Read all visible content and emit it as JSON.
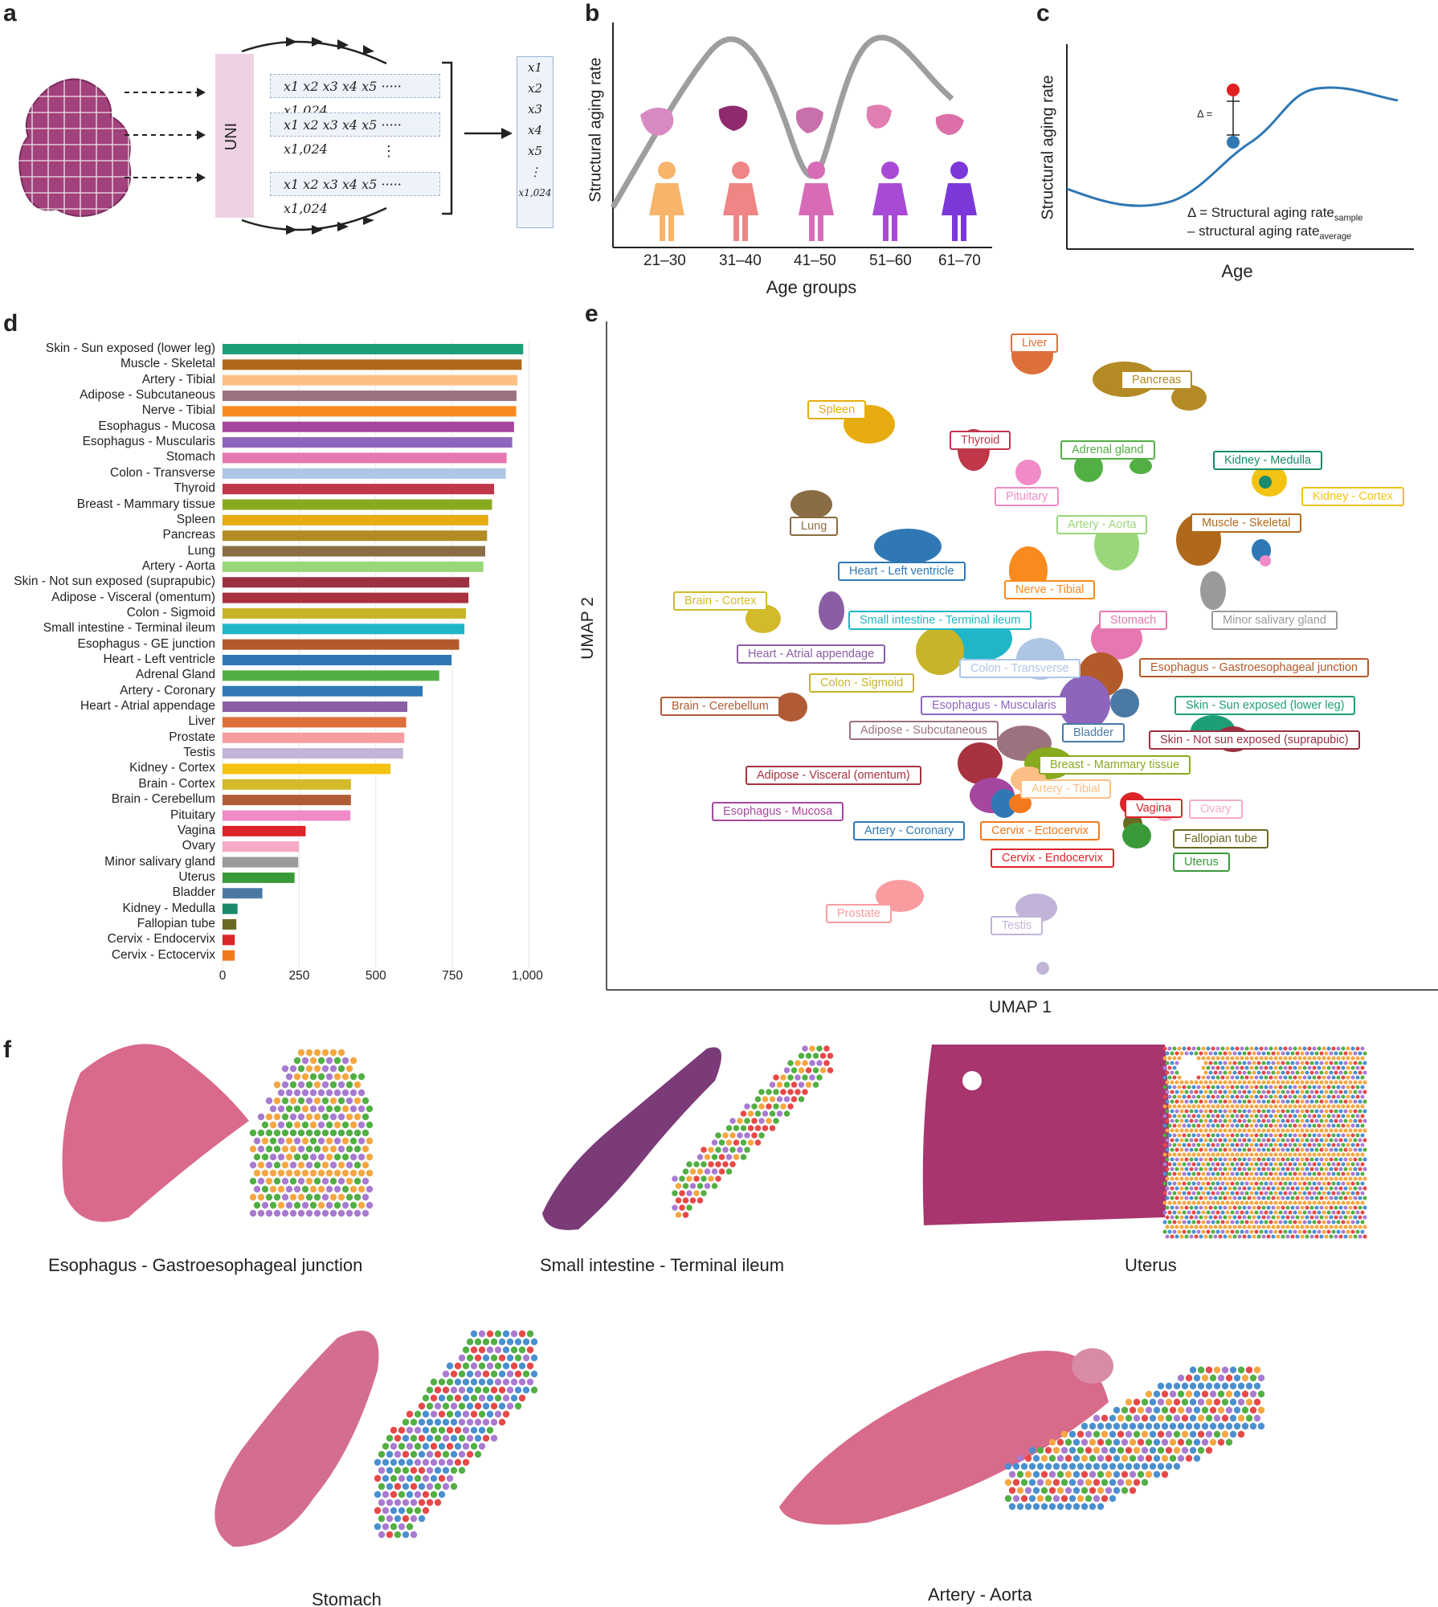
{
  "panels": {
    "a": "a",
    "b": "b",
    "c": "c",
    "d": "d",
    "e": "e",
    "f": "f"
  },
  "panel_a": {
    "encoder_label": "UNI",
    "feature_rows": [
      "x1 x2 x3 x4 x5 ····· x1,024",
      "x1 x2 x3 x4 x5 ····· x1,024",
      "x1 x2 x3 x4 x5 ····· x1,024"
    ],
    "ellipsis": "⋮",
    "output_vector": [
      "x1",
      "x2",
      "x3",
      "x4",
      "x5",
      "⋮",
      "x1,024"
    ]
  },
  "panel_b": {
    "ylabel": "Structural aging rate",
    "xlabel": "Age groups",
    "groups": [
      "21–30",
      "31–40",
      "41–50",
      "51–60",
      "61–70"
    ],
    "figure_colors": [
      "#f8b46a",
      "#ef8584",
      "#d86bb8",
      "#a94ad6",
      "#7c37d9"
    ]
  },
  "panel_c": {
    "ylabel": "Structural aging rate",
    "xlabel": "Age",
    "delta_label": "Δ =",
    "formula_line1_main": "Δ = Structural aging rate",
    "formula_line1_sub": "sample",
    "formula_line2_main": "– structural aging rate",
    "formula_line2_sub": "average"
  },
  "chart_data": {
    "type": "bar",
    "orientation": "horizontal",
    "categories": [
      "Skin - Sun exposed (lower leg)",
      "Muscle - Skeletal",
      "Artery - Tibial",
      "Adipose - Subcutaneous",
      "Nerve - Tibial",
      "Esophagus - Mucosa",
      "Esophagus - Muscularis",
      "Stomach",
      "Colon - Transverse",
      "Thyroid",
      "Breast - Mammary tissue",
      "Spleen",
      "Pancreas",
      "Lung",
      "Artery - Aorta",
      "Skin - Not sun exposed (suprapubic)",
      "Adipose - Visceral (omentum)",
      "Colon - Sigmoid",
      "Small intestine - Terminal ileum",
      "Esophagus - GE junction",
      "Heart - Left ventricle",
      "Adrenal Gland",
      "Artery - Coronary",
      "Heart - Atrial appendage",
      "Liver",
      "Prostate",
      "Testis",
      "Kidney - Cortex",
      "Brain - Cortex",
      "Brain - Cerebellum",
      "Pituitary",
      "Vagina",
      "Ovary",
      "Minor salivary gland",
      "Uterus",
      "Bladder",
      "Kidney - Medulla",
      "Fallopian tube",
      "Cervix - Endocervix",
      "Cervix - Ectocervix"
    ],
    "values": [
      981,
      976,
      962,
      959,
      958,
      951,
      945,
      927,
      924,
      886,
      879,
      867,
      863,
      857,
      851,
      805,
      802,
      794,
      789,
      772,
      747,
      707,
      653,
      603,
      599,
      593,
      589,
      548,
      419,
      419,
      417,
      271,
      249,
      247,
      235,
      130,
      49,
      45,
      40,
      40
    ],
    "colors": [
      "#1e9e77",
      "#b0691b",
      "#fdbf85",
      "#9c727e",
      "#f88a1e",
      "#a5479f",
      "#8e65bd",
      "#e578b0",
      "#aec5e6",
      "#c0374a",
      "#88aa1e",
      "#e7ac0f",
      "#b38a24",
      "#8a6d44",
      "#9ad67a",
      "#9c3040",
      "#a8323f",
      "#c8b428",
      "#1fb7c8",
      "#b35a2a",
      "#2f78b4",
      "#52af43",
      "#2f78b4",
      "#8b5ea4",
      "#dd6f3a",
      "#f99ca0",
      "#c2b3d9",
      "#f3c213",
      "#d2ba2a",
      "#b05b36",
      "#f08bc8",
      "#dc2429",
      "#f7aac8",
      "#9a9a9a",
      "#3a9a3a",
      "#4a7aa4",
      "#1a8a6a",
      "#6a6a22",
      "#dc2429",
      "#f3791e"
    ],
    "xticks": [
      "0",
      "250",
      "500",
      "750",
      "1,000"
    ],
    "xlim": [
      0,
      1030
    ],
    "grid": true
  },
  "panel_e": {
    "xlabel": "UMAP 1",
    "ylabel": "UMAP 2",
    "labels": [
      {
        "text": "Liver",
        "color": "#dd6f3a"
      },
      {
        "text": "Pancreas",
        "color": "#b38a24"
      },
      {
        "text": "Spleen",
        "color": "#e7ac0f"
      },
      {
        "text": "Thyroid",
        "color": "#c0374a"
      },
      {
        "text": "Adrenal gland",
        "color": "#52af43"
      },
      {
        "text": "Kidney - Medulla",
        "color": "#1a8a6a"
      },
      {
        "text": "Kidney - Cortex",
        "color": "#f3c213"
      },
      {
        "text": "Pituitary",
        "color": "#f08bc8"
      },
      {
        "text": "Lung",
        "color": "#8a6d44"
      },
      {
        "text": "Artery - Aorta",
        "color": "#9ad67a"
      },
      {
        "text": "Muscle - Skeletal",
        "color": "#b0691b"
      },
      {
        "text": "Heart - Left ventricle",
        "color": "#2f78b4"
      },
      {
        "text": "Nerve - Tibial",
        "color": "#f88a1e"
      },
      {
        "text": "Brain - Cortex",
        "color": "#d2ba2a"
      },
      {
        "text": "Small intestine - Terminal ileum",
        "color": "#1fb7c8"
      },
      {
        "text": "Stomach",
        "color": "#e578b0"
      },
      {
        "text": "Minor salivary gland",
        "color": "#9a9a9a"
      },
      {
        "text": "Heart - Atrial appendage",
        "color": "#8b5ea4"
      },
      {
        "text": "Colon - Transverse",
        "color": "#aec5e6"
      },
      {
        "text": "Esophagus - Gastroesophageal junction",
        "color": "#b35a2a"
      },
      {
        "text": "Colon - Sigmoid",
        "color": "#c8b428"
      },
      {
        "text": "Brain - Cerebellum",
        "color": "#b05b36"
      },
      {
        "text": "Esophagus - Muscularis",
        "color": "#8e65bd"
      },
      {
        "text": "Skin - Sun exposed (lower leg)",
        "color": "#1e9e77"
      },
      {
        "text": "Adipose - Subcutaneous",
        "color": "#9c727e"
      },
      {
        "text": "Bladder",
        "color": "#4a7aa4"
      },
      {
        "text": "Skin - Not sun exposed (suprapubic)",
        "color": "#9c3040"
      },
      {
        "text": "Breast - Mammary tissue",
        "color": "#88aa1e"
      },
      {
        "text": "Adipose - Visceral (omentum)",
        "color": "#a8323f"
      },
      {
        "text": "Artery - Tibial",
        "color": "#fdbf85"
      },
      {
        "text": "Vagina",
        "color": "#dc2429"
      },
      {
        "text": "Ovary",
        "color": "#f7aac8"
      },
      {
        "text": "Esophagus - Mucosa",
        "color": "#a5479f"
      },
      {
        "text": "Artery - Coronary",
        "color": "#2f78b4"
      },
      {
        "text": "Cervix - Ectocervix",
        "color": "#f3791e"
      },
      {
        "text": "Fallopian tube",
        "color": "#6a6a22"
      },
      {
        "text": "Cervix - Endocervix",
        "color": "#dc2429"
      },
      {
        "text": "Uterus",
        "color": "#3a9a3a"
      },
      {
        "text": "Prostate",
        "color": "#f99ca0"
      },
      {
        "text": "Testis",
        "color": "#c2b3d9"
      }
    ]
  },
  "panel_f": {
    "captions": [
      "Esophagus - Gastroesophageal junction",
      "Small intestine - Terminal ileum",
      "Uterus",
      "Stomach",
      "Artery - Aorta"
    ]
  }
}
